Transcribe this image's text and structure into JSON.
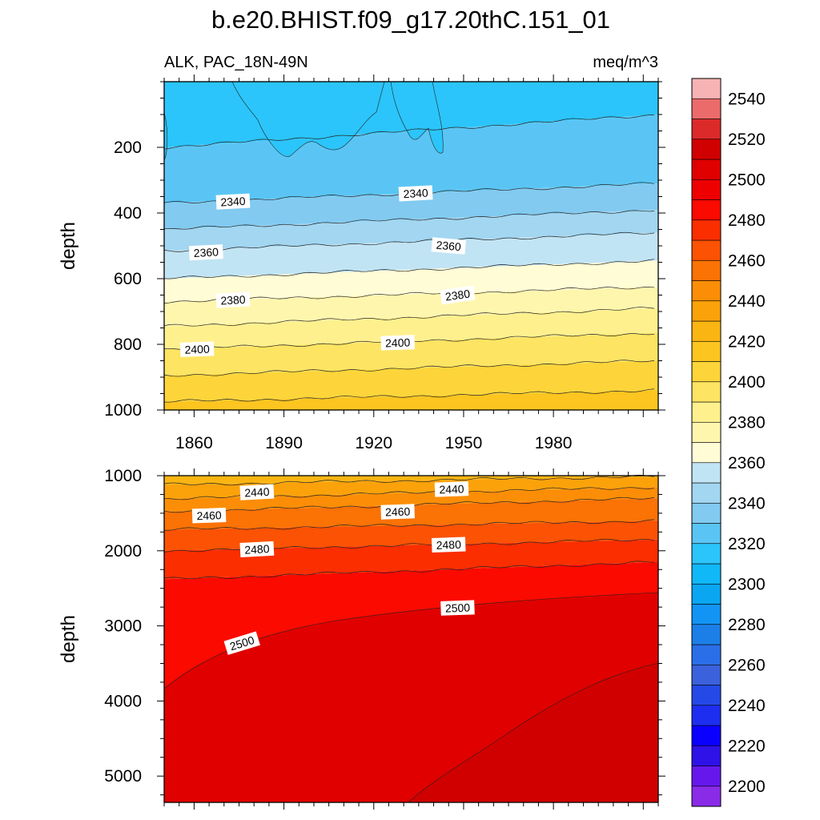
{
  "title": "b.e20.BHIST.f09_g17.20thC.151_01",
  "chart_data": {
    "type": "heatmap",
    "title": "b.e20.BHIST.f09_g17.20thC.151_01",
    "subtitle_left": "ALK, PAC_18N-49N",
    "subtitle_right": "meq/m^3",
    "variable": "ALK",
    "region": "PAC_18N-49N",
    "units": "meq/m^3",
    "xlabel": "",
    "ylabel": "depth",
    "xlim": [
      1850,
      2015
    ],
    "xticks": [
      "1860",
      "1890",
      "1920",
      "1950",
      "1980"
    ],
    "y_reversed": true,
    "panels": [
      {
        "name": "upper",
        "ylim": [
          0,
          1000
        ],
        "yticks": [
          "200",
          "400",
          "600",
          "800",
          "1000"
        ],
        "show_x_labels": true,
        "contours": [
          {
            "level": 2320,
            "depth_1850": 200,
            "depth_2015": 100
          },
          {
            "level": 2330,
            "depth_1850": 370,
            "depth_2015": 310
          },
          {
            "level": 2340,
            "depth_1850": 450,
            "depth_2015": 390
          },
          {
            "level": 2350,
            "depth_1850": 515,
            "depth_2015": 460
          },
          {
            "level": 2360,
            "depth_1850": 600,
            "depth_2015": 545
          },
          {
            "level": 2370,
            "depth_1850": 670,
            "depth_2015": 625
          },
          {
            "level": 2380,
            "depth_1850": 745,
            "depth_2015": 690
          },
          {
            "level": 2390,
            "depth_1850": 815,
            "depth_2015": 765
          },
          {
            "level": 2400,
            "depth_1850": 895,
            "depth_2015": 850
          },
          {
            "level": 2410,
            "depth_1850": 975,
            "depth_2015": 940
          }
        ],
        "labels": [
          {
            "text": "2340",
            "year": 1873,
            "depth": 365,
            "angle": -3
          },
          {
            "text": "2340",
            "year": 1934,
            "depth": 340,
            "angle": -3
          },
          {
            "text": "2360",
            "year": 1864,
            "depth": 520,
            "angle": -3
          },
          {
            "text": "2360",
            "year": 1945,
            "depth": 500,
            "angle": 5
          },
          {
            "text": "2380",
            "year": 1873,
            "depth": 665,
            "angle": -3
          },
          {
            "text": "2380",
            "year": 1948,
            "depth": 650,
            "angle": -8
          },
          {
            "text": "2400",
            "year": 1861,
            "depth": 815,
            "angle": -2
          },
          {
            "text": "2400",
            "year": 1928,
            "depth": 795,
            "angle": -2
          }
        ]
      },
      {
        "name": "lower",
        "ylim": [
          1000,
          5350
        ],
        "yticks": [
          "1000",
          "2000",
          "3000",
          "4000",
          "5000"
        ],
        "show_x_labels": false,
        "contours": [
          {
            "level": 2430,
            "depth_1850": 1120,
            "depth_2015": 1010
          },
          {
            "level": 2440,
            "depth_1850": 1310,
            "depth_2015": 1150
          },
          {
            "level": 2450,
            "depth_1850": 1480,
            "depth_2015": 1300
          },
          {
            "level": 2460,
            "depth_1850": 1720,
            "depth_2015": 1600
          },
          {
            "level": 2470,
            "depth_1850": 2000,
            "depth_2015": 1850
          },
          {
            "level": 2480,
            "depth_1850": 2380,
            "depth_2015": 2150
          }
        ],
        "labels": [
          {
            "text": "2440",
            "year": 1881,
            "depth": 1220,
            "angle": -3
          },
          {
            "text": "2440",
            "year": 1946,
            "depth": 1180,
            "angle": -2
          },
          {
            "text": "2460",
            "year": 1865,
            "depth": 1530,
            "angle": -2
          },
          {
            "text": "2460",
            "year": 1928,
            "depth": 1480,
            "angle": -2
          },
          {
            "text": "2480",
            "year": 1881,
            "depth": 1980,
            "angle": -3
          },
          {
            "text": "2480",
            "year": 1945,
            "depth": 1920,
            "angle": -2
          },
          {
            "text": "2500",
            "year": 1876,
            "depth": 3230,
            "angle": -17
          },
          {
            "text": "2500",
            "year": 1948,
            "depth": 2760,
            "angle": -2
          }
        ]
      }
    ],
    "colorbar": {
      "levels": [
        2200,
        2210,
        2220,
        2230,
        2240,
        2250,
        2260,
        2270,
        2280,
        2290,
        2300,
        2310,
        2320,
        2330,
        2340,
        2350,
        2360,
        2370,
        2380,
        2390,
        2400,
        2410,
        2420,
        2430,
        2440,
        2450,
        2460,
        2470,
        2480,
        2490,
        2500,
        2510,
        2520,
        2530,
        2540,
        2550
      ],
      "tick_labels": [
        "2200",
        "2220",
        "2240",
        "2260",
        "2280",
        "2300",
        "2320",
        "2340",
        "2360",
        "2380",
        "2400",
        "2420",
        "2440",
        "2460",
        "2480",
        "2500",
        "2520",
        "2540"
      ],
      "colors": [
        "#8a2be8",
        "#6618ec",
        "#2f12e8",
        "#0a00ff",
        "#1e2ef0",
        "#2449e6",
        "#3b62dc",
        "#2b6fe8",
        "#1c7fe8",
        "#1294f4",
        "#0aa6f2",
        "#10b8f8",
        "#2bc5fb",
        "#5ac5f4",
        "#82caf0",
        "#a2d6f1",
        "#c1e4f4",
        "#fffcd6",
        "#fff6ae",
        "#fff08e",
        "#fde463",
        "#fdd53a",
        "#fcc520",
        "#fbb512",
        "#fba20b",
        "#fc8e07",
        "#fb7205",
        "#fb5203",
        "#fb2e00",
        "#fb0a00",
        "#ee0000",
        "#e00000",
        "#d10000",
        "#dc2a2a",
        "#eb6b6b",
        "#f7b3b3"
      ]
    }
  }
}
